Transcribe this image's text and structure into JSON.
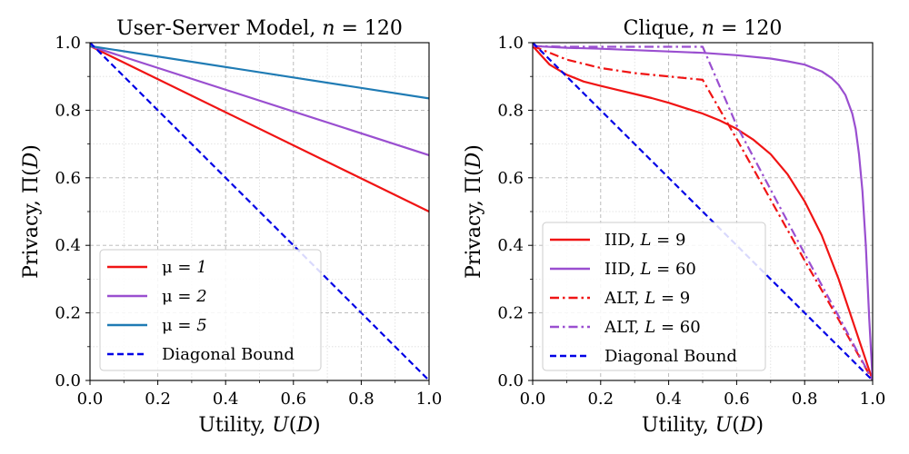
{
  "chart_data": [
    {
      "type": "line",
      "title": "User-Server Model, n = 120",
      "title_parts": [
        "User-Server Model, ",
        "n",
        " = 120"
      ],
      "xlabel": "Utility, U(D)",
      "xlabel_parts": [
        "Utility, ",
        "U",
        "(",
        "D",
        ")"
      ],
      "ylabel": "Privacy, Π(D)",
      "ylabel_parts": [
        "Privacy, Π(",
        "D",
        ")"
      ],
      "xlim": [
        0,
        1
      ],
      "ylim": [
        0,
        1
      ],
      "xticks": [
        "0.0",
        "0.2",
        "0.4",
        "0.6",
        "0.8",
        "1.0"
      ],
      "yticks": [
        "0.0",
        "0.2",
        "0.4",
        "0.6",
        "0.8",
        "1.0"
      ],
      "grid": true,
      "legend_position": "lower-left",
      "series": [
        {
          "name": "μ = 1",
          "label_parts": [
            "μ",
            " = 1"
          ],
          "color": "#f01414",
          "style": "solid",
          "x": [
            0.0,
            1.0
          ],
          "y": [
            0.99,
            0.5
          ]
        },
        {
          "name": "μ = 2",
          "label_parts": [
            "μ",
            " = 2"
          ],
          "color": "#9a4fd0",
          "style": "solid",
          "x": [
            0.0,
            1.0
          ],
          "y": [
            0.99,
            0.667
          ]
        },
        {
          "name": "μ = 5",
          "label_parts": [
            "μ",
            " = 5"
          ],
          "color": "#1f7bb4",
          "style": "solid",
          "x": [
            0.0,
            1.0
          ],
          "y": [
            0.99,
            0.835
          ]
        },
        {
          "name": "Diagonal Bound",
          "label_parts": [
            "Diagonal Bound"
          ],
          "color": "#0000e6",
          "style": "dashed",
          "x": [
            0.0,
            1.0
          ],
          "y": [
            1.0,
            0.0
          ]
        }
      ]
    },
    {
      "type": "line",
      "title": "Clique, n = 120",
      "title_parts": [
        "Clique, ",
        "n",
        " = 120"
      ],
      "xlabel": "Utility, U(D)",
      "xlabel_parts": [
        "Utility, ",
        "U",
        "(",
        "D",
        ")"
      ],
      "ylabel": "Privacy, Π(D)",
      "ylabel_parts": [
        "Privacy, Π(",
        "D",
        ")"
      ],
      "xlim": [
        0,
        1
      ],
      "ylim": [
        0,
        1
      ],
      "xticks": [
        "0.0",
        "0.2",
        "0.4",
        "0.6",
        "0.8",
        "1.0"
      ],
      "yticks": [
        "0.0",
        "0.2",
        "0.4",
        "0.6",
        "0.8",
        "1.0"
      ],
      "grid": true,
      "legend_position": "lower-left",
      "series": [
        {
          "name": "IID, L = 9",
          "label_parts": [
            "IID, ",
            "L",
            " = 9"
          ],
          "color": "#f01414",
          "style": "solid",
          "x": [
            0.0,
            0.05,
            0.1,
            0.15,
            0.2,
            0.25,
            0.3,
            0.35,
            0.4,
            0.45,
            0.5,
            0.55,
            0.6,
            0.65,
            0.7,
            0.75,
            0.8,
            0.85,
            0.9,
            0.95,
            0.98,
            1.0
          ],
          "y": [
            0.99,
            0.935,
            0.905,
            0.885,
            0.872,
            0.86,
            0.848,
            0.836,
            0.822,
            0.806,
            0.79,
            0.77,
            0.745,
            0.712,
            0.67,
            0.61,
            0.53,
            0.43,
            0.3,
            0.15,
            0.06,
            0.0
          ]
        },
        {
          "name": "IID, L = 60",
          "label_parts": [
            "IID, ",
            "L",
            " = 60"
          ],
          "color": "#9a4fd0",
          "style": "solid",
          "x": [
            0.0,
            0.1,
            0.2,
            0.3,
            0.4,
            0.5,
            0.6,
            0.7,
            0.75,
            0.8,
            0.85,
            0.88,
            0.9,
            0.92,
            0.94,
            0.95,
            0.96,
            0.97,
            0.98,
            0.99,
            1.0
          ],
          "y": [
            0.99,
            0.985,
            0.982,
            0.978,
            0.974,
            0.97,
            0.963,
            0.953,
            0.945,
            0.935,
            0.915,
            0.895,
            0.875,
            0.845,
            0.79,
            0.745,
            0.67,
            0.56,
            0.4,
            0.18,
            0.0
          ]
        },
        {
          "name": "ALT, L = 9",
          "label_parts": [
            "ALT, ",
            "L",
            " = 9"
          ],
          "color": "#f01414",
          "style": "dashdot",
          "x": [
            0.0,
            0.1,
            0.2,
            0.3,
            0.4,
            0.5,
            0.6,
            0.7,
            0.8,
            0.9,
            1.0
          ],
          "y": [
            0.99,
            0.95,
            0.925,
            0.91,
            0.9,
            0.89,
            0.715,
            0.535,
            0.355,
            0.18,
            0.0
          ]
        },
        {
          "name": "ALT, L = 60",
          "label_parts": [
            "ALT, ",
            "L",
            " = 60"
          ],
          "color": "#9a4fd0",
          "style": "dashdot",
          "x": [
            0.0,
            0.1,
            0.2,
            0.3,
            0.4,
            0.5,
            0.6,
            0.7,
            0.8,
            0.9,
            1.0
          ],
          "y": [
            0.99,
            0.988,
            0.988,
            0.988,
            0.988,
            0.988,
            0.755,
            0.565,
            0.375,
            0.19,
            0.0
          ]
        },
        {
          "name": "Diagonal Bound",
          "label_parts": [
            "Diagonal Bound"
          ],
          "color": "#0000e6",
          "style": "dashed",
          "x": [
            0.0,
            1.0
          ],
          "y": [
            1.0,
            0.0
          ]
        }
      ]
    }
  ]
}
